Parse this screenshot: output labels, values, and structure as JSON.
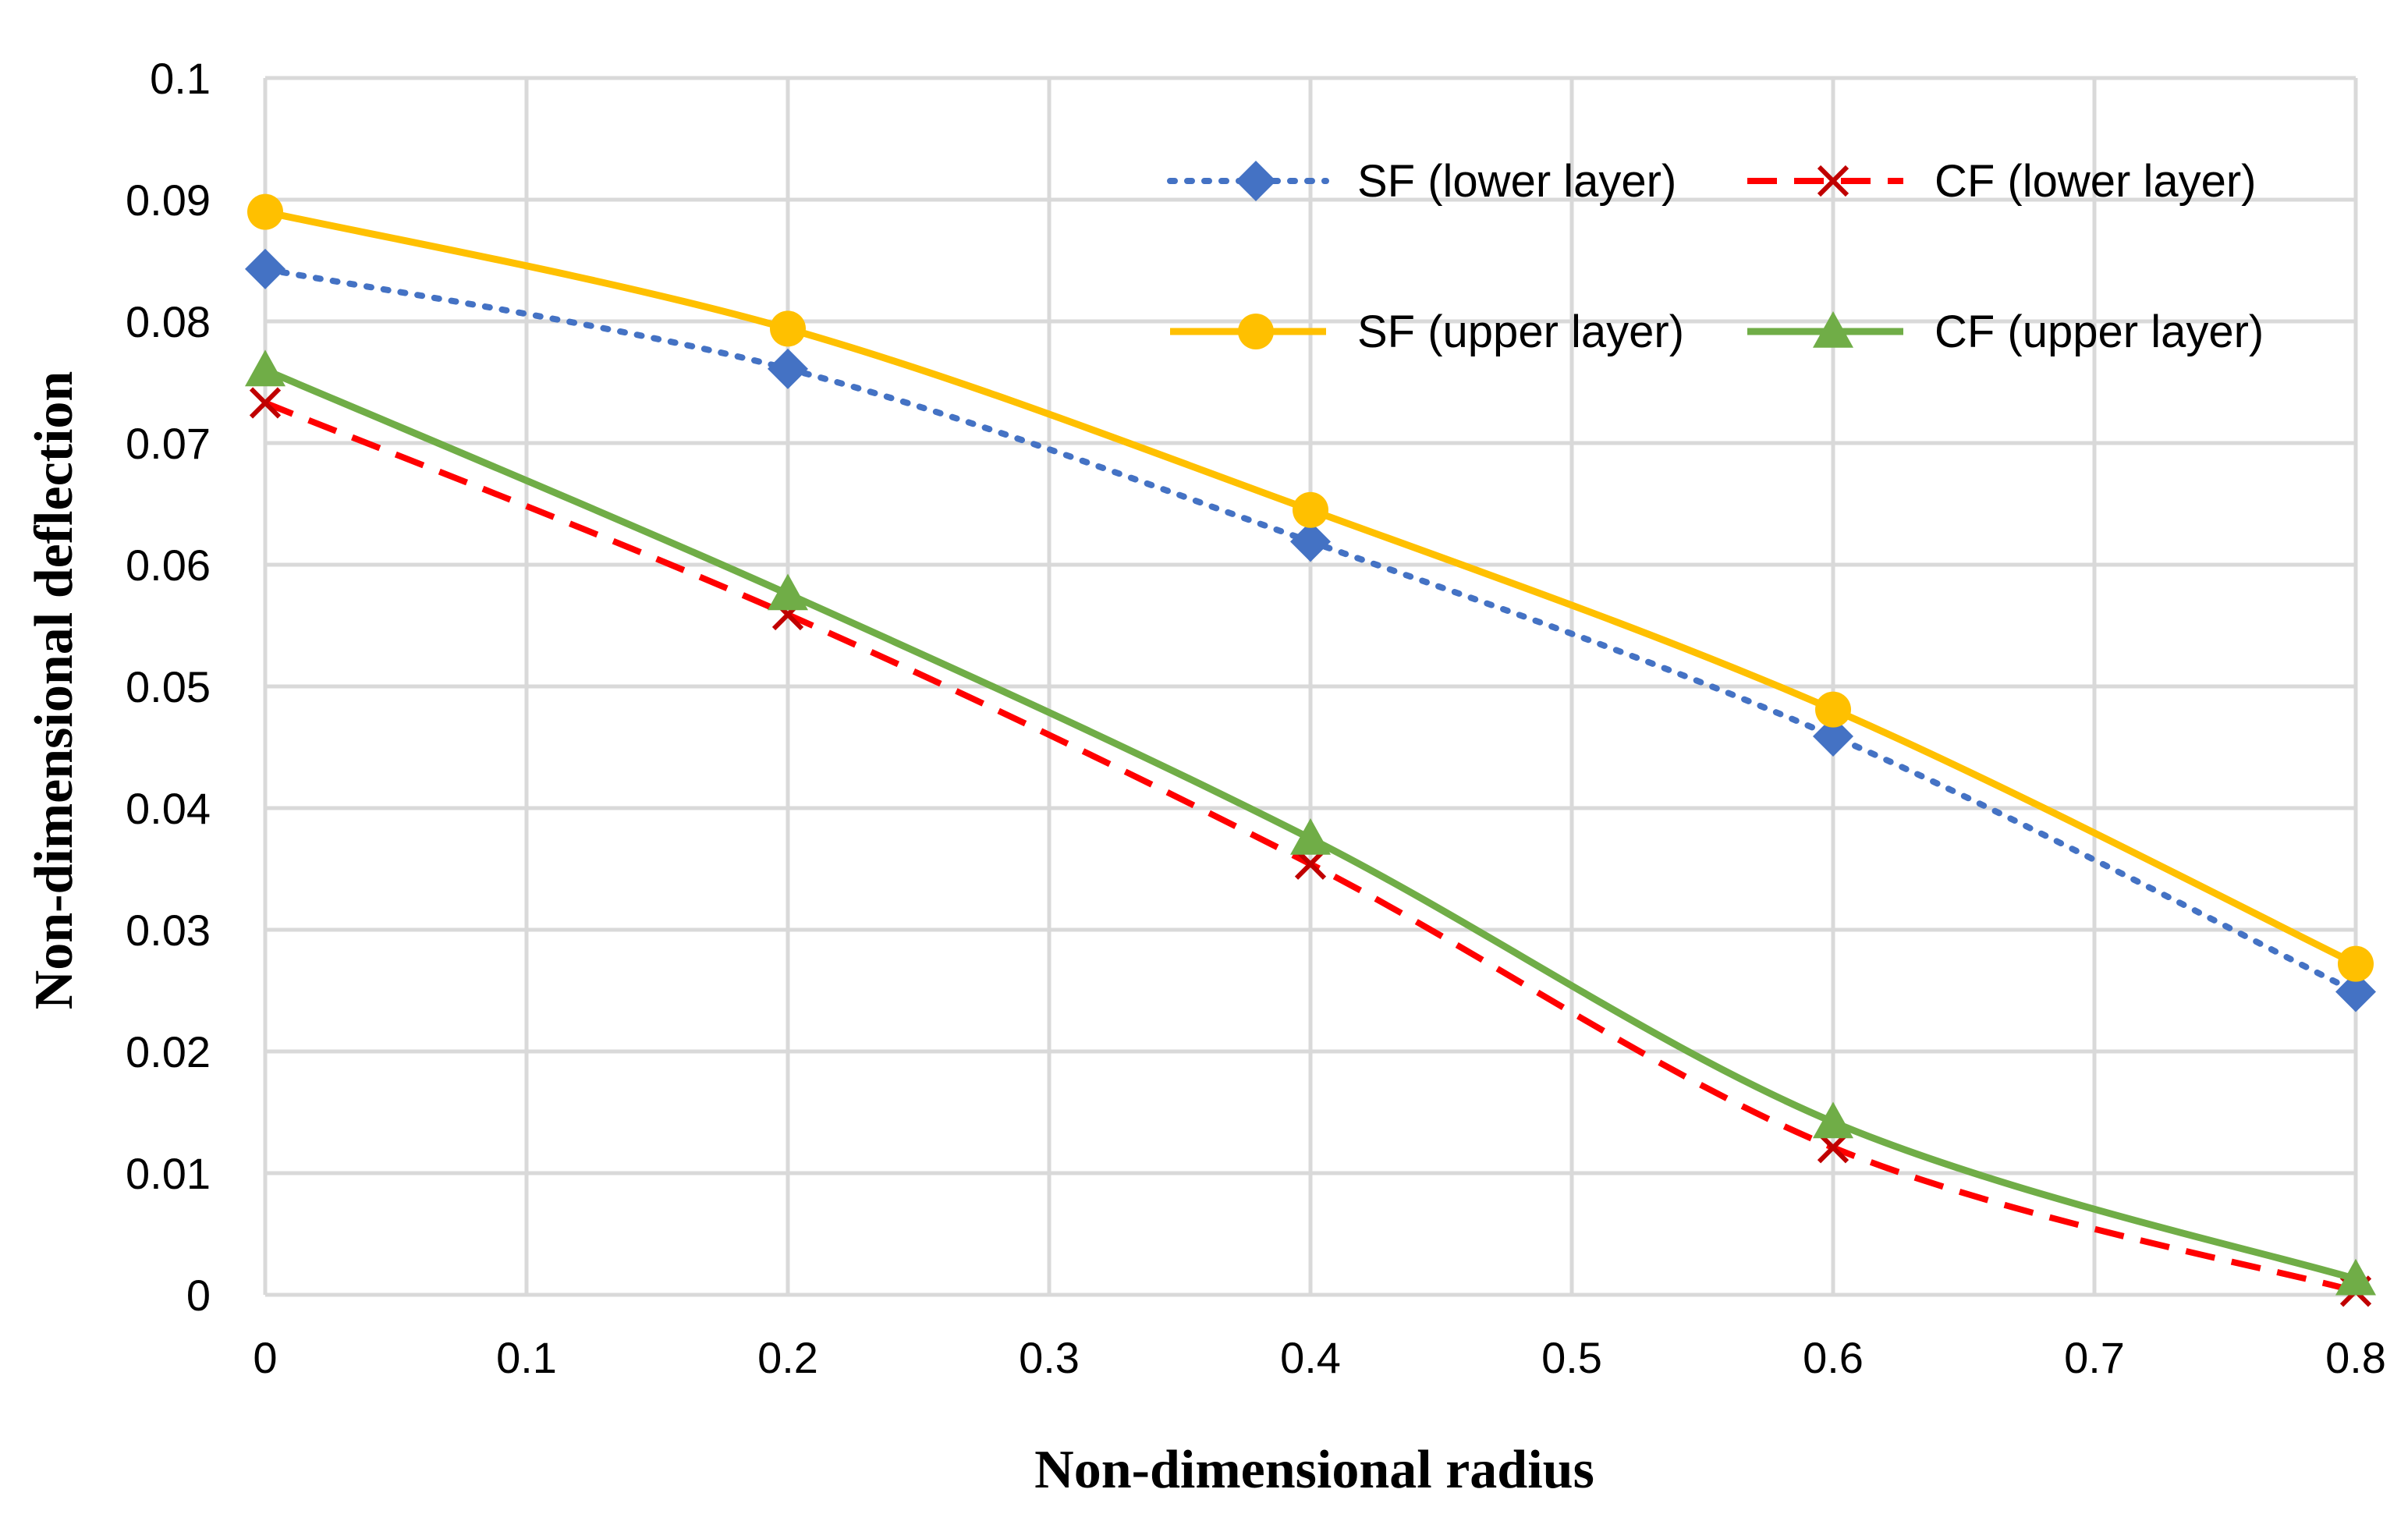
{
  "chart_data": {
    "type": "line",
    "title": "",
    "xlabel": "Non-dimensional radius",
    "ylabel": "Non-dimensional deflection",
    "xlim": [
      0,
      0.8
    ],
    "ylim": [
      0,
      0.1
    ],
    "grid": true,
    "legend_position": "top-right",
    "x_ticks": [
      "0",
      "0.1",
      "0.2",
      "0.3",
      "0.4",
      "0.5",
      "0.6",
      "0.7",
      "0.8"
    ],
    "y_ticks": [
      "0",
      "0.01",
      "0.02",
      "0.03",
      "0.04",
      "0.05",
      "0.06",
      "0.07",
      "0.08",
      "0.09",
      "0.1"
    ],
    "x": [
      0,
      0.2,
      0.4,
      0.6,
      0.8
    ],
    "series": [
      {
        "name": "SF (lower layer)",
        "values": [
          0.0843,
          0.0761,
          0.0619,
          0.0459,
          0.0249
        ],
        "color": "#4472C4",
        "dash": "dotted",
        "marker": "diamond"
      },
      {
        "name": "CF (lower layer)",
        "values": [
          0.0733,
          0.0559,
          0.0354,
          0.0121,
          0.0003
        ],
        "color": "#FF0000",
        "dash": "dashed",
        "marker": "x",
        "marker_color": "#C00000"
      },
      {
        "name": "SF (upper layer)",
        "values": [
          0.089,
          0.0794,
          0.0645,
          0.0481,
          0.0272
        ],
        "color": "#FFC000",
        "dash": "solid",
        "marker": "circle"
      },
      {
        "name": "CF (upper layer)",
        "values": [
          0.076,
          0.0576,
          0.0375,
          0.0142,
          0.0013
        ],
        "color": "#70AD47",
        "dash": "solid",
        "marker": "triangle"
      }
    ]
  }
}
